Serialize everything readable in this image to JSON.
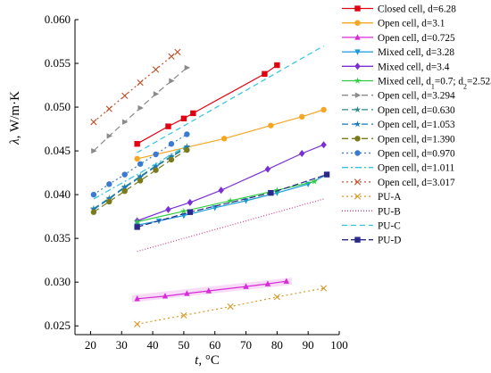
{
  "chart_data": {
    "type": "line",
    "xlabel_var": "t",
    "xlabel_unit": ", °C",
    "ylabel_var": "λ",
    "ylabel_unit": ", W/m·K",
    "xlim": [
      15,
      100
    ],
    "ylim": [
      0.024,
      0.06
    ],
    "x_ticks": [
      20,
      30,
      40,
      50,
      60,
      70,
      80,
      90,
      100
    ],
    "y_ticks": [
      0.025,
      0.03,
      0.035,
      0.04,
      0.045,
      0.05,
      0.055,
      0.06
    ],
    "y_tick_labels": [
      "0.025",
      "0.030",
      "0.035",
      "0.040",
      "0.045",
      "0.050",
      "0.055",
      "0.060"
    ],
    "series": [
      {
        "name": "Closed cell, d=6.28",
        "color": "#e3000f",
        "dash": "",
        "marker": "square",
        "x": [
          35,
          45,
          50,
          53,
          76,
          80
        ],
        "y": [
          0.0458,
          0.0478,
          0.0487,
          0.0493,
          0.0538,
          0.0548
        ]
      },
      {
        "name": "Open cell, d=3.1",
        "color": "#f5a623",
        "dash": "",
        "marker": "circle",
        "x": [
          35,
          63,
          78,
          88,
          95
        ],
        "y": [
          0.0441,
          0.0464,
          0.0479,
          0.0489,
          0.0497
        ]
      },
      {
        "name": "Open cell, d=0.725",
        "color": "#d72bd9",
        "dash": "",
        "marker": "triangle-up",
        "x": [
          35,
          44,
          51,
          58,
          70,
          77,
          83
        ],
        "y": [
          0.0281,
          0.0284,
          0.0287,
          0.029,
          0.0295,
          0.0298,
          0.0301
        ]
      },
      {
        "name": "Mixed cell, d=3.28",
        "color": "#1a9ad6",
        "dash": "",
        "marker": "triangle-down",
        "x": [
          35,
          42,
          50,
          60,
          70,
          80,
          90,
          96
        ],
        "y": [
          0.0365,
          0.037,
          0.0376,
          0.0385,
          0.0393,
          0.0402,
          0.0412,
          0.0423
        ]
      },
      {
        "name": "Mixed cell, d=3.4",
        "color": "#7a2ed6",
        "dash": "",
        "marker": "diamond",
        "x": [
          35,
          45,
          52,
          62,
          77,
          88,
          95
        ],
        "y": [
          0.037,
          0.0383,
          0.0391,
          0.0405,
          0.0429,
          0.0447,
          0.0457
        ]
      },
      {
        "name": "Mixed cell, d1=0.7; d2=2.523",
        "color": "#2ecc40",
        "dash": "",
        "marker": "star",
        "x": [
          35,
          50,
          65,
          80,
          92
        ],
        "y": [
          0.0369,
          0.0381,
          0.0393,
          0.0405,
          0.0415
        ]
      },
      {
        "name": "Open cell, d=3.294",
        "color": "#8a8a8a",
        "dash": "7 4",
        "marker": "triangle-right",
        "x": [
          21,
          26,
          31,
          36,
          41,
          46,
          51
        ],
        "y": [
          0.045,
          0.0467,
          0.0483,
          0.0499,
          0.0515,
          0.053,
          0.0545
        ]
      },
      {
        "name": "Open cell, d=0.630",
        "color": "#2f8a8a",
        "dash": "7 4",
        "marker": "star",
        "x": [
          21,
          26,
          31,
          36,
          41,
          46,
          51
        ],
        "y": [
          0.0384,
          0.0396,
          0.0409,
          0.0421,
          0.0433,
          0.0444,
          0.0455
        ]
      },
      {
        "name": "Open cell, d=1.053",
        "color": "#1a7ab8",
        "dash": "7 4",
        "marker": "star",
        "x": [
          21,
          26,
          31,
          36,
          41,
          46,
          51
        ],
        "y": [
          0.0383,
          0.0395,
          0.0408,
          0.042,
          0.0432,
          0.0443,
          0.0454
        ]
      },
      {
        "name": "Open cell, d=1.390",
        "color": "#7a7a1a",
        "dash": "7 4",
        "marker": "circle",
        "x": [
          21,
          26,
          31,
          36,
          41,
          46,
          51
        ],
        "y": [
          0.038,
          0.0392,
          0.0404,
          0.0416,
          0.0428,
          0.044,
          0.0451
        ]
      },
      {
        "name": "Open cell, d=0.970",
        "color": "#3a7ad0",
        "dash": "2 3",
        "marker": "circle",
        "x": [
          21,
          26,
          31,
          36,
          41,
          46,
          51
        ],
        "y": [
          0.04,
          0.0412,
          0.0423,
          0.0435,
          0.0446,
          0.0458,
          0.0469
        ]
      },
      {
        "name": "Open cell, d=1.011",
        "color": "#2ec4e0",
        "dash": "7 3 2 3",
        "marker": "none",
        "x": [
          21,
          26,
          31,
          36,
          41,
          46,
          51
        ],
        "y": [
          0.0395,
          0.0405,
          0.0415,
          0.0425,
          0.0435,
          0.0446,
          0.0456
        ]
      },
      {
        "name": "Open cell, d=3.017",
        "color": "#c0502a",
        "dash": "2 3",
        "marker": "x",
        "x": [
          21,
          26,
          31,
          36,
          41,
          46,
          48
        ],
        "y": [
          0.0483,
          0.0498,
          0.0513,
          0.0528,
          0.0543,
          0.0558,
          0.0563
        ]
      },
      {
        "name": "PU-A",
        "color": "#d89a2a",
        "dash": "2 3",
        "marker": "x",
        "x": [
          35,
          50,
          65,
          80,
          95
        ],
        "y": [
          0.0252,
          0.0262,
          0.0272,
          0.0283,
          0.0293
        ]
      },
      {
        "name": "PU-B",
        "color": "#d23c8c",
        "dash": "1 2",
        "marker": "none",
        "x": [
          35,
          95
        ],
        "y": [
          0.0335,
          0.0395
        ]
      },
      {
        "name": "PU-C",
        "color": "#2ec4e0",
        "dash": "6 4",
        "marker": "none",
        "x": [
          35,
          95
        ],
        "y": [
          0.0448,
          0.057
        ]
      },
      {
        "name": "PU-D",
        "color": "#2a2a8a",
        "dash": "7 3",
        "marker": "square",
        "x": [
          35,
          52,
          78,
          96
        ],
        "y": [
          0.0363,
          0.038,
          0.0402,
          0.0423
        ]
      }
    ],
    "legend_position": "right"
  },
  "legend_labels": [
    "Closed cell, d=6.28",
    "Open cell, d=3.1",
    "Open cell, d=0.725",
    "Mixed cell, d=3.28",
    "Mixed cell, d=3.4",
    "Mixed cell, d1=0.7; d2=2.523",
    "Open cell, d=3.294",
    "Open cell, d=0.630",
    "Open cell, d=1.053",
    "Open cell, d=1.390",
    "Open cell, d=0.970",
    "Open cell, d=1.011",
    "Open cell, d=3.017",
    "PU-A",
    "PU-B",
    "PU-C",
    "PU-D"
  ]
}
